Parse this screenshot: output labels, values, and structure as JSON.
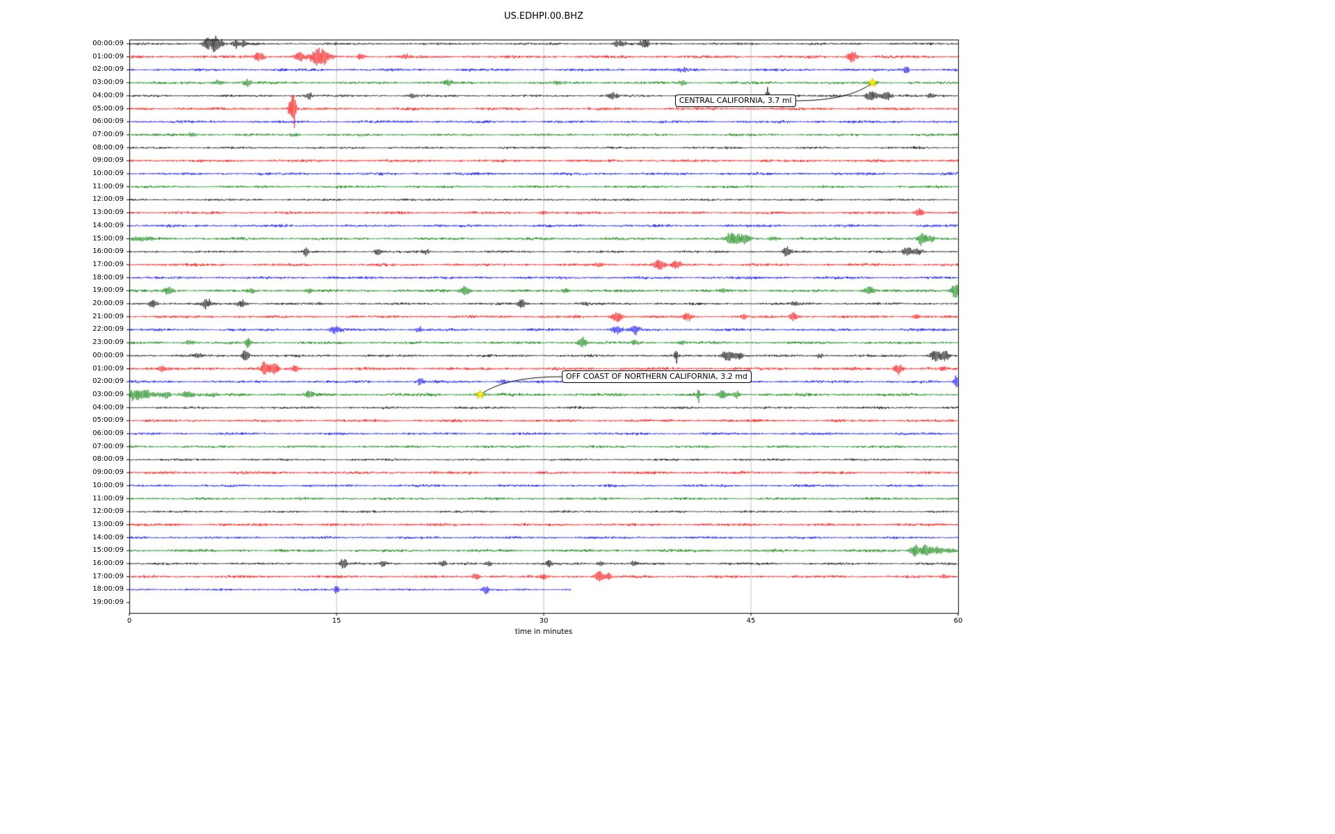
{
  "chart_data": {
    "type": "line",
    "subtype": "helicorder-day-plot",
    "title": "US.EDHPI.00.BHZ",
    "xlabel": "time in minutes",
    "xlim": [
      0,
      60
    ],
    "x_ticks": [
      0,
      15,
      30,
      45,
      60
    ],
    "grid": {
      "vertical_ticks": [
        15,
        30,
        45
      ],
      "grid_color": "#b0b0b0"
    },
    "trace_colors_cycle": [
      "#000000",
      "#ff0000",
      "#0000ff",
      "#008000"
    ],
    "marker": {
      "shape": "star",
      "fill": "#ffee00"
    },
    "rows": [
      {
        "label": "00:00:09",
        "color": "#000000",
        "base": 1.2,
        "bursts": [
          [
            5.7,
            7,
            0.3
          ],
          [
            6.2,
            9,
            0.15
          ],
          [
            6.6,
            5,
            0.2
          ],
          [
            7.7,
            5,
            0.2
          ],
          [
            8.3,
            4,
            0.15
          ],
          [
            35.5,
            4,
            0.3
          ],
          [
            37.3,
            6,
            0.25
          ]
        ]
      },
      {
        "label": "01:00:09",
        "color": "#ff0000",
        "base": 1.5,
        "bursts": [
          [
            9.4,
            5,
            0.3
          ],
          [
            12.3,
            6,
            0.3
          ],
          [
            13.6,
            9,
            0.4
          ],
          [
            14.2,
            6,
            0.3
          ],
          [
            16.8,
            4,
            0.2
          ],
          [
            20,
            3,
            0.3
          ],
          [
            52.3,
            6,
            0.3
          ]
        ]
      },
      {
        "label": "02:00:09",
        "color": "#0000ff",
        "base": 1.4,
        "bursts": [
          [
            40,
            2.5,
            0.3
          ],
          [
            56.2,
            5,
            0.2
          ]
        ]
      },
      {
        "label": "03:00:09",
        "color": "#008000",
        "base": 1.4,
        "bursts": [
          [
            6.4,
            3,
            0.3
          ],
          [
            8.6,
            4,
            0.3
          ],
          [
            23,
            4,
            0.25
          ],
          [
            31,
            2.5,
            0.3
          ],
          [
            40,
            3,
            0.2
          ],
          [
            53.8,
            3,
            0.3
          ]
        ]
      },
      {
        "label": "04:00:09",
        "color": "#000000",
        "base": 1.2,
        "bursts": [
          [
            13,
            4,
            0.2
          ],
          [
            20.5,
            3,
            0.2
          ],
          [
            35,
            4,
            0.3
          ],
          [
            46.2,
            12,
            0.08
          ],
          [
            53.7,
            6,
            0.3
          ],
          [
            54.8,
            5,
            0.3
          ],
          [
            58,
            3,
            0.2
          ]
        ]
      },
      {
        "label": "05:00:09",
        "color": "#ff0000",
        "base": 1.4,
        "bursts": [
          [
            11.6,
            8,
            0.1
          ],
          [
            11.9,
            24,
            0.12
          ]
        ]
      },
      {
        "label": "06:00:09",
        "color": "#0000ff",
        "base": 1.4,
        "bursts": []
      },
      {
        "label": "07:00:09",
        "color": "#008000",
        "base": 1.3,
        "bursts": [
          [
            4.5,
            2.5,
            0.3
          ],
          [
            12,
            2,
            0.3
          ]
        ]
      },
      {
        "label": "08:00:09",
        "color": "#000000",
        "base": 1.1,
        "bursts": []
      },
      {
        "label": "09:00:09",
        "color": "#ff0000",
        "base": 1.4,
        "bursts": []
      },
      {
        "label": "10:00:09",
        "color": "#0000ff",
        "base": 1.4,
        "bursts": []
      },
      {
        "label": "11:00:09",
        "color": "#008000",
        "base": 1.3,
        "bursts": []
      },
      {
        "label": "12:00:09",
        "color": "#000000",
        "base": 1.1,
        "bursts": []
      },
      {
        "label": "13:00:09",
        "color": "#ff0000",
        "base": 1.4,
        "bursts": [
          [
            30,
            2.5,
            0.3
          ],
          [
            57.2,
            5,
            0.25
          ]
        ]
      },
      {
        "label": "14:00:09",
        "color": "#0000ff",
        "base": 1.4,
        "bursts": []
      },
      {
        "label": "15:00:09",
        "color": "#008000",
        "base": 1.5,
        "bursts": [
          [
            0.8,
            3,
            0.5
          ],
          [
            43.7,
            7,
            0.4
          ],
          [
            44.6,
            5,
            0.3
          ],
          [
            46.6,
            3,
            0.3
          ],
          [
            57.4,
            7,
            0.25
          ],
          [
            58,
            4,
            0.2
          ]
        ]
      },
      {
        "label": "16:00:09",
        "color": "#000000",
        "base": 1.2,
        "bursts": [
          [
            12.8,
            6,
            0.15
          ],
          [
            18,
            5,
            0.2
          ],
          [
            21.5,
            3,
            0.2
          ],
          [
            47.6,
            6,
            0.2
          ],
          [
            56.3,
            4,
            0.3
          ],
          [
            57.1,
            4,
            0.3
          ]
        ]
      },
      {
        "label": "17:00:09",
        "color": "#ff0000",
        "base": 1.4,
        "bursts": [
          [
            34,
            3,
            0.2
          ],
          [
            38.4,
            6,
            0.3
          ],
          [
            39.6,
            5,
            0.25
          ]
        ]
      },
      {
        "label": "18:00:09",
        "color": "#0000ff",
        "base": 1.4,
        "bursts": []
      },
      {
        "label": "19:00:09",
        "color": "#008000",
        "base": 1.5,
        "bursts": [
          [
            2.8,
            4,
            0.3
          ],
          [
            8.8,
            3,
            0.3
          ],
          [
            13,
            3,
            0.25
          ],
          [
            24.3,
            5,
            0.3
          ],
          [
            31.6,
            3,
            0.25
          ],
          [
            43,
            3,
            0.2
          ],
          [
            53.6,
            5,
            0.3
          ],
          [
            59.8,
            9,
            0.25
          ]
        ]
      },
      {
        "label": "20:00:09",
        "color": "#000000",
        "base": 1.3,
        "bursts": [
          [
            1.7,
            5,
            0.25
          ],
          [
            5.6,
            5,
            0.3
          ],
          [
            8.1,
            4,
            0.25
          ],
          [
            28.4,
            5,
            0.25
          ],
          [
            33,
            3,
            0.2
          ],
          [
            48.2,
            3,
            0.2
          ]
        ]
      },
      {
        "label": "21:00:09",
        "color": "#ff0000",
        "base": 1.4,
        "bursts": [
          [
            35.3,
            6,
            0.3
          ],
          [
            40.4,
            5,
            0.25
          ],
          [
            44.5,
            3,
            0.2
          ],
          [
            48.1,
            5,
            0.25
          ],
          [
            57,
            3,
            0.2
          ]
        ]
      },
      {
        "label": "22:00:09",
        "color": "#0000ff",
        "base": 1.4,
        "bursts": [
          [
            14.9,
            5,
            0.3
          ],
          [
            21,
            3,
            0.2
          ],
          [
            35.3,
            5,
            0.3
          ],
          [
            36.6,
            6,
            0.25
          ]
        ]
      },
      {
        "label": "23:00:09",
        "color": "#008000",
        "base": 1.4,
        "bursts": [
          [
            4.4,
            3,
            0.3
          ],
          [
            8.6,
            8,
            0.15
          ],
          [
            32.8,
            6,
            0.25
          ],
          [
            36.6,
            3,
            0.25
          ],
          [
            40,
            3,
            0.2
          ]
        ]
      },
      {
        "label": "00:00:09",
        "color": "#000000",
        "base": 1.3,
        "bursts": [
          [
            5,
            3,
            0.3
          ],
          [
            8.4,
            7,
            0.2
          ],
          [
            39.6,
            9,
            0.1
          ],
          [
            43.3,
            6,
            0.3
          ],
          [
            44.1,
            5,
            0.25
          ],
          [
            50,
            3,
            0.2
          ],
          [
            58.4,
            7,
            0.3
          ],
          [
            59.1,
            5,
            0.25
          ]
        ]
      },
      {
        "label": "01:00:09",
        "color": "#ff0000",
        "base": 1.5,
        "bursts": [
          [
            2.4,
            4,
            0.3
          ],
          [
            9.8,
            7,
            0.3
          ],
          [
            10.5,
            5,
            0.25
          ],
          [
            12,
            4,
            0.2
          ],
          [
            55.7,
            6,
            0.25
          ],
          [
            59,
            3,
            0.2
          ]
        ]
      },
      {
        "label": "02:00:09",
        "color": "#0000ff",
        "base": 1.4,
        "bursts": [
          [
            21.1,
            5,
            0.2
          ],
          [
            27,
            3,
            0.2
          ],
          [
            59.9,
            8,
            0.15
          ]
        ]
      },
      {
        "label": "03:00:09",
        "color": "#008000",
        "base": 1.6,
        "bursts": [
          [
            0.3,
            6,
            0.4
          ],
          [
            1.2,
            5,
            0.4
          ],
          [
            2.5,
            4,
            0.4
          ],
          [
            4.2,
            4,
            0.4
          ],
          [
            6,
            3,
            0.3
          ],
          [
            13.1,
            5,
            0.25
          ],
          [
            25.4,
            3,
            0.3
          ],
          [
            41.2,
            8,
            0.08
          ],
          [
            42.9,
            6,
            0.25
          ],
          [
            44,
            4,
            0.2
          ]
        ]
      },
      {
        "label": "04:00:09",
        "color": "#000000",
        "base": 1.2,
        "bursts": []
      },
      {
        "label": "05:00:09",
        "color": "#ff0000",
        "base": 1.4,
        "bursts": []
      },
      {
        "label": "06:00:09",
        "color": "#0000ff",
        "base": 1.3,
        "bursts": []
      },
      {
        "label": "07:00:09",
        "color": "#008000",
        "base": 1.3,
        "bursts": []
      },
      {
        "label": "08:00:09",
        "color": "#000000",
        "base": 1.1,
        "bursts": []
      },
      {
        "label": "09:00:09",
        "color": "#ff0000",
        "base": 1.4,
        "bursts": []
      },
      {
        "label": "10:00:09",
        "color": "#0000ff",
        "base": 1.3,
        "bursts": []
      },
      {
        "label": "11:00:09",
        "color": "#008000",
        "base": 1.3,
        "bursts": []
      },
      {
        "label": "12:00:09",
        "color": "#000000",
        "base": 1.1,
        "bursts": []
      },
      {
        "label": "13:00:09",
        "color": "#ff0000",
        "base": 1.4,
        "bursts": []
      },
      {
        "label": "14:00:09",
        "color": "#0000ff",
        "base": 1.3,
        "bursts": []
      },
      {
        "label": "15:00:09",
        "color": "#008000",
        "base": 1.5,
        "bursts": [
          [
            56.9,
            7,
            0.3
          ],
          [
            57.7,
            7,
            0.25
          ],
          [
            58.5,
            6,
            0.25
          ],
          [
            59.3,
            4,
            0.2
          ]
        ]
      },
      {
        "label": "16:00:09",
        "color": "#000000",
        "base": 1.2,
        "bursts": [
          [
            15.5,
            6,
            0.2
          ],
          [
            18.4,
            4,
            0.2
          ],
          [
            22.7,
            3,
            0.2
          ],
          [
            26,
            3,
            0.2
          ],
          [
            30.4,
            6,
            0.15
          ],
          [
            34.1,
            3,
            0.2
          ],
          [
            36.5,
            3,
            0.2
          ]
        ]
      },
      {
        "label": "17:00:09",
        "color": "#ff0000",
        "base": 1.4,
        "bursts": [
          [
            25.1,
            4,
            0.2
          ],
          [
            30,
            3,
            0.2
          ],
          [
            34,
            6,
            0.25
          ],
          [
            34.7,
            4,
            0.2
          ],
          [
            59,
            3,
            0.2
          ]
        ]
      },
      {
        "label": "18:00:09",
        "color": "#0000ff",
        "base": 1.1,
        "end": 32,
        "bursts": [
          [
            15,
            5,
            0.15
          ],
          [
            25.8,
            6,
            0.15
          ]
        ]
      },
      {
        "label": "19:00:09",
        "color": "#008000",
        "base": 0,
        "empty": true,
        "bursts": []
      }
    ],
    "annotations": [
      {
        "label": "CENTRAL CALIFORNIA, 3.7 ml",
        "row": 3,
        "minute": 53.8,
        "box_row": 4.4,
        "box_minute": 39.5
      },
      {
        "label": "OFF COAST OF NORTHERN CALIFORNIA, 3.2 md",
        "row": 27,
        "minute": 25.4,
        "box_row": 25.6,
        "box_minute": 31.3
      }
    ]
  }
}
